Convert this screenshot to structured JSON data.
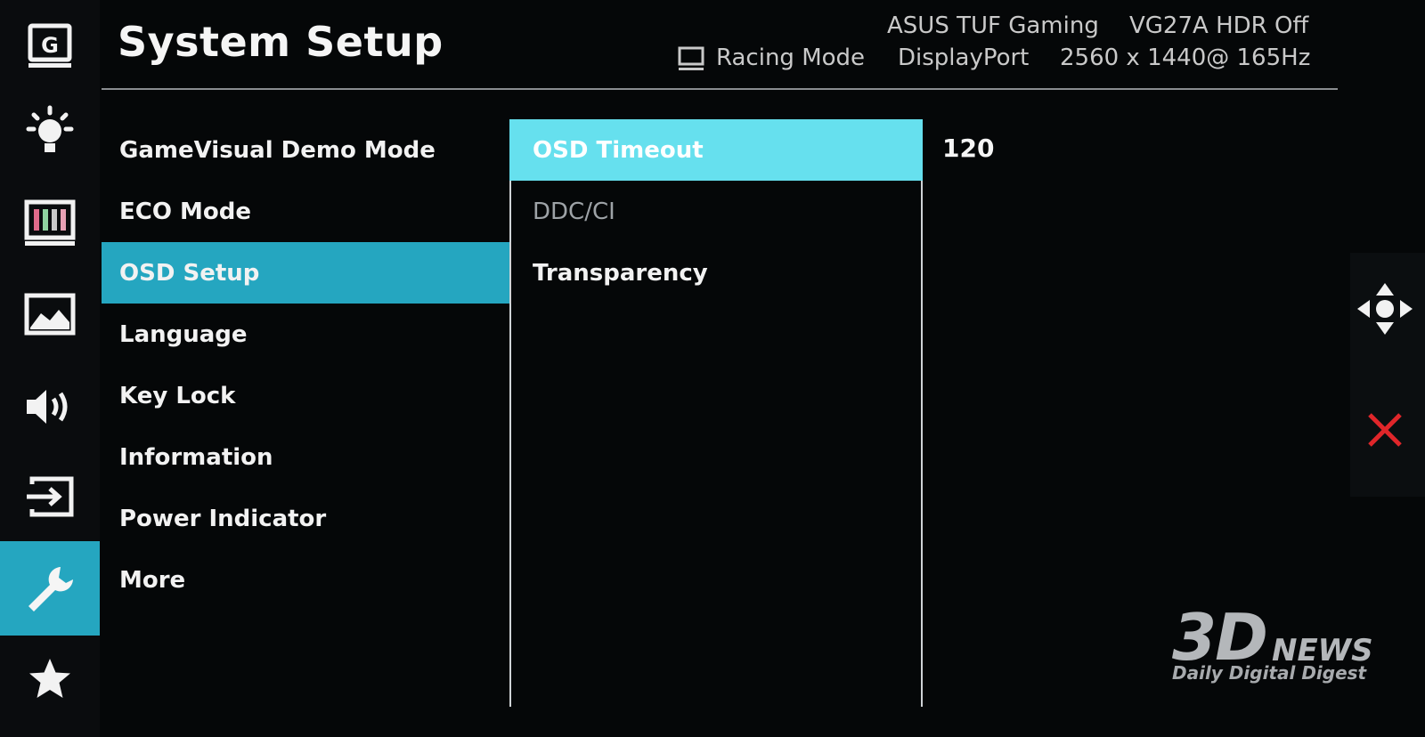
{
  "rail": {
    "items": [
      {
        "icon": "gamevisual-icon"
      },
      {
        "icon": "blue-light-filter-icon"
      },
      {
        "icon": "color-icon"
      },
      {
        "icon": "image-icon"
      },
      {
        "icon": "sound-icon"
      },
      {
        "icon": "input-select-icon"
      },
      {
        "icon": "system-setup-wrench-icon",
        "active": true
      },
      {
        "icon": "my-favorite-star-icon"
      }
    ],
    "active_color": "#25a6c0"
  },
  "header": {
    "title": "System Setup",
    "model": "ASUS TUF Gaming",
    "hdr_status": "VG27A HDR Off",
    "mode": "Racing Mode",
    "input": "DisplayPort",
    "resolution": "2560 x 1440@ 165Hz"
  },
  "menu": {
    "items": [
      {
        "label": "GameVisual Demo Mode"
      },
      {
        "label": "ECO Mode"
      },
      {
        "label": "OSD Setup",
        "active": true
      },
      {
        "label": "Language"
      },
      {
        "label": "Key Lock"
      },
      {
        "label": "Information"
      },
      {
        "label": "Power Indicator"
      },
      {
        "label": "More"
      }
    ]
  },
  "submenu": {
    "items": [
      {
        "label": "OSD Timeout",
        "active": true
      },
      {
        "label": "DDC/CI",
        "dim": true
      },
      {
        "label": "Transparency"
      }
    ],
    "highlight_color": "#66e0ee"
  },
  "value_panel": {
    "value": "120"
  },
  "controls": {
    "nav": "five-way-navigation-icon",
    "close": "close-icon",
    "close_color": "#e0262a"
  },
  "watermark": {
    "logo": "3D",
    "news": "NEWS",
    "tagline": "Daily Digital Digest"
  }
}
